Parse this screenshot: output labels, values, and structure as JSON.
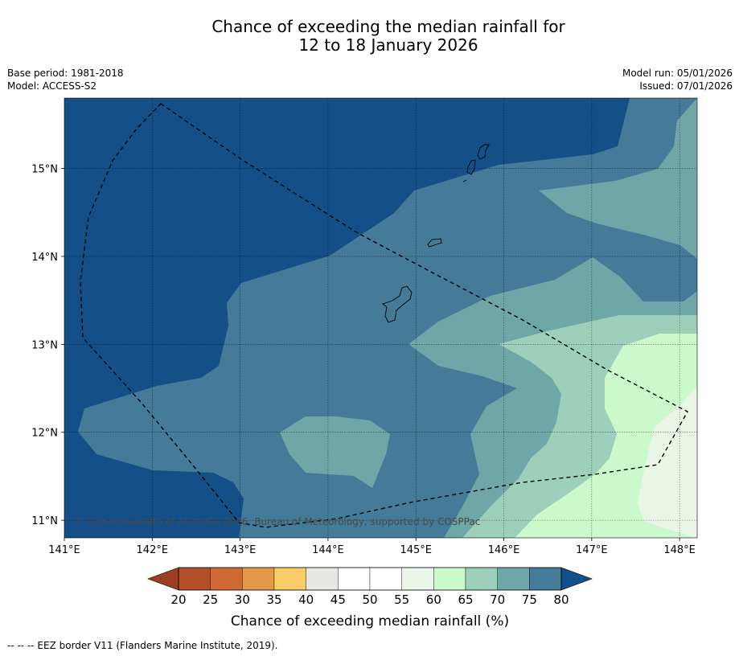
{
  "title_line1": "Chance of exceeding the median rainfall for",
  "title_line2": "12 to 18 January 2026",
  "base_period": "Base period: 1981-2018",
  "model": "Model: ACCESS-S2",
  "model_run": "Model run: 05/01/2026",
  "issued": "Issued: 07/01/2026",
  "copyright": "© Commonwealth of Australia 2026, Bureau of Meteorology, supported by COSPPac",
  "footer_note": "--  --  -- EEZ border V11 (Flanders Marine Institute, 2019).",
  "chart_data": {
    "type": "contour-map",
    "title": "Chance of exceeding the median rainfall for 12 to 18 January 2026",
    "x_ticks": [
      "141°E",
      "142°E",
      "143°E",
      "144°E",
      "145°E",
      "146°E",
      "147°E",
      "148°E"
    ],
    "x_values": [
      141,
      142,
      143,
      144,
      145,
      146,
      147,
      148
    ],
    "y_ticks": [
      "15°N",
      "14°N",
      "13°N",
      "12°N",
      "11°N"
    ],
    "y_values": [
      15,
      14,
      13,
      12,
      11
    ],
    "lon_range": [
      141,
      148.2
    ],
    "lat_range": [
      10.8,
      15.8
    ],
    "colorbar": {
      "label": "Chance of exceeding median rainfall (%)",
      "ticks": [
        "20",
        "25",
        "30",
        "35",
        "40",
        "45",
        "50",
        "55",
        "60",
        "65",
        "70",
        "75",
        "80"
      ],
      "colors": [
        "#b54e2a",
        "#cf6a34",
        "#e3994a",
        "#fbcd69",
        "#e8e8e2",
        "#ffffff",
        "#ffffff",
        "#eaf5e8",
        "#ccf9cc",
        "#9ecfba",
        "#6fa6a8",
        "#437b98"
      ],
      "low_extend_color": "#9d3e22",
      "high_extend_color": "#154f87"
    }
  }
}
